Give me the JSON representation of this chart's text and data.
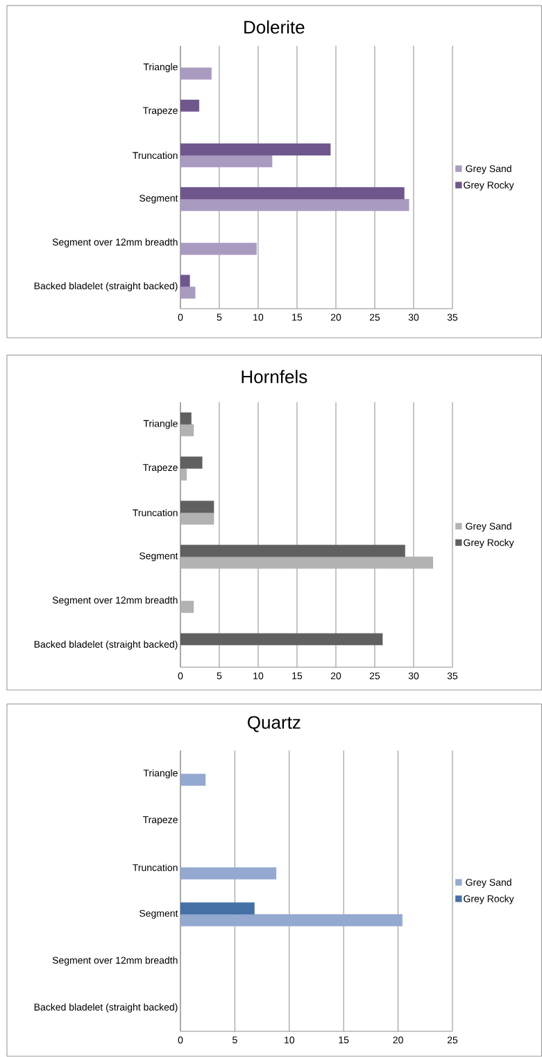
{
  "chart_data": [
    {
      "type": "bar",
      "orientation": "horizontal",
      "title": "Dolerite",
      "categories": [
        "Triangle",
        "Trapeze",
        "Truncation",
        "Segment",
        "Segment over 12mm breadth",
        "Backed bladelet (straight backed)"
      ],
      "series": [
        {
          "name": "Grey Sand",
          "color": "#a99bc0",
          "values": [
            4.0,
            null,
            11.8,
            29.4,
            9.8,
            1.9
          ]
        },
        {
          "name": "Grey Rocky",
          "color": "#6f578e",
          "values": [
            null,
            2.4,
            19.3,
            28.8,
            null,
            1.2
          ]
        }
      ],
      "xlim": [
        0,
        35
      ],
      "xticks": [
        0,
        5,
        10,
        15,
        20,
        25,
        30,
        35
      ],
      "grid": "x",
      "legend": "right"
    },
    {
      "type": "bar",
      "orientation": "horizontal",
      "title": "Hornfels",
      "categories": [
        "Triangle",
        "Trapeze",
        "Truncation",
        "Segment",
        "Segment over 12mm breadth",
        "Backed bladelet (straight backed)"
      ],
      "series": [
        {
          "name": "Grey Sand",
          "color": "#b2b2b2",
          "values": [
            1.7,
            0.8,
            4.3,
            32.5,
            1.7,
            null
          ]
        },
        {
          "name": "Grey Rocky",
          "color": "#606060",
          "values": [
            1.4,
            2.8,
            4.3,
            28.9,
            null,
            26.0
          ]
        }
      ],
      "xlim": [
        0,
        35
      ],
      "xticks": [
        0,
        5,
        10,
        15,
        20,
        25,
        30,
        35
      ],
      "grid": "x",
      "legend": "right"
    },
    {
      "type": "bar",
      "orientation": "horizontal",
      "title": "Quartz",
      "categories": [
        "Triangle",
        "Trapeze",
        "Truncation",
        "Segment",
        "Segment over 12mm breadth",
        "Backed bladelet (straight backed)"
      ],
      "series": [
        {
          "name": "Grey Sand",
          "color": "#94a9d0",
          "values": [
            2.3,
            null,
            8.8,
            20.4,
            null,
            null
          ]
        },
        {
          "name": "Grey Rocky",
          "color": "#4470a5",
          "values": [
            null,
            null,
            null,
            6.8,
            null,
            null
          ]
        }
      ],
      "xlim": [
        0,
        25
      ],
      "xticks": [
        0,
        5,
        10,
        15,
        20,
        25
      ],
      "grid": "x",
      "legend": "right"
    }
  ]
}
